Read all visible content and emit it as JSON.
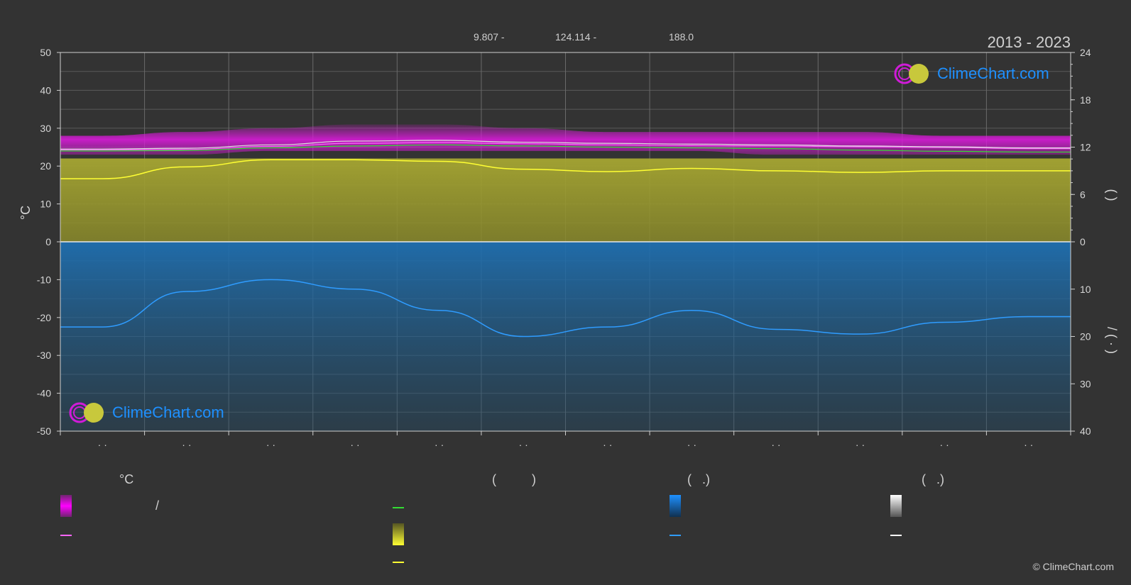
{
  "header": {
    "years": "2013 - 2023",
    "coords": [
      "9.807 -",
      "124.114 -",
      "188.0"
    ]
  },
  "logo_text": "ClimeChart.com",
  "copyright": "© ClimeChart.com",
  "legend": {
    "col1_header": "°C",
    "col1_slash": "/",
    "col2_header": "(          )",
    "col3_header": "(   .)",
    "col4_header": "(   .)"
  },
  "colors": {
    "background": "#333333",
    "temp_band": "#d81bd8",
    "sunshine": "#9e9e2e",
    "precip": "#1f6fb0",
    "day_line": "#e0e0e0",
    "max_line": "#ff66ff",
    "mean_line": "#33dd33",
    "sun_line": "#ffff33",
    "precip_line": "#2f9cff"
  },
  "chart_data": {
    "type": "area",
    "x_ticks": [
      "· ·",
      "· ·",
      "· ·",
      "· ·",
      "· ·",
      "· ·",
      "· ·",
      "· ·",
      "· ·",
      "· ·",
      "· ·",
      "· ·"
    ],
    "y_left": {
      "label": "°C",
      "range": [
        -50,
        50
      ],
      "ticks": [
        50,
        40,
        30,
        20,
        10,
        0,
        -10,
        -20,
        -30,
        -40,
        -50
      ]
    },
    "y_right_top": {
      "ticks": [
        24,
        18,
        12,
        6,
        0
      ],
      "range": [
        0,
        24
      ]
    },
    "y_right_bottom": {
      "ticks": [
        10,
        20,
        30,
        40
      ],
      "range": [
        0,
        40
      ]
    },
    "right_label_top": "(    )",
    "right_label_bottom": "/      (  ·  )",
    "x_months": [
      0.5,
      1.5,
      2.5,
      3.5,
      4.5,
      5.5,
      6.5,
      7.5,
      8.5,
      9.5,
      10.5,
      11.5
    ],
    "temp_max_band": [
      28,
      29,
      30,
      31,
      31,
      30,
      29,
      29,
      29,
      29,
      28,
      28
    ],
    "temp_min_band": [
      23,
      23,
      24,
      24,
      24,
      24,
      24,
      24,
      23,
      23,
      23,
      23
    ],
    "daylight_line": [
      24.5,
      24.7,
      25.6,
      26.6,
      26.8,
      26.3,
      26.0,
      25.8,
      25.6,
      25.3,
      25.1,
      24.8
    ],
    "max_line": [
      24.3,
      24.4,
      25.2,
      26.0,
      26.2,
      25.9,
      25.6,
      25.4,
      25.3,
      25.1,
      24.9,
      24.6
    ],
    "mean_line": [
      24.0,
      24.1,
      24.8,
      25.3,
      25.6,
      25.3,
      25.0,
      24.8,
      24.6,
      24.2,
      23.9,
      23.7
    ],
    "sunshine_hours": [
      8.0,
      9.5,
      10.4,
      10.4,
      10.2,
      9.2,
      8.9,
      9.3,
      9.0,
      8.8,
      9.0,
      9.0
    ],
    "precip_mm": [
      18,
      10.5,
      8,
      10,
      14.5,
      20,
      18,
      14.5,
      18.5,
      19.5,
      17,
      15.8
    ],
    "x_range": [
      0,
      12
    ]
  }
}
